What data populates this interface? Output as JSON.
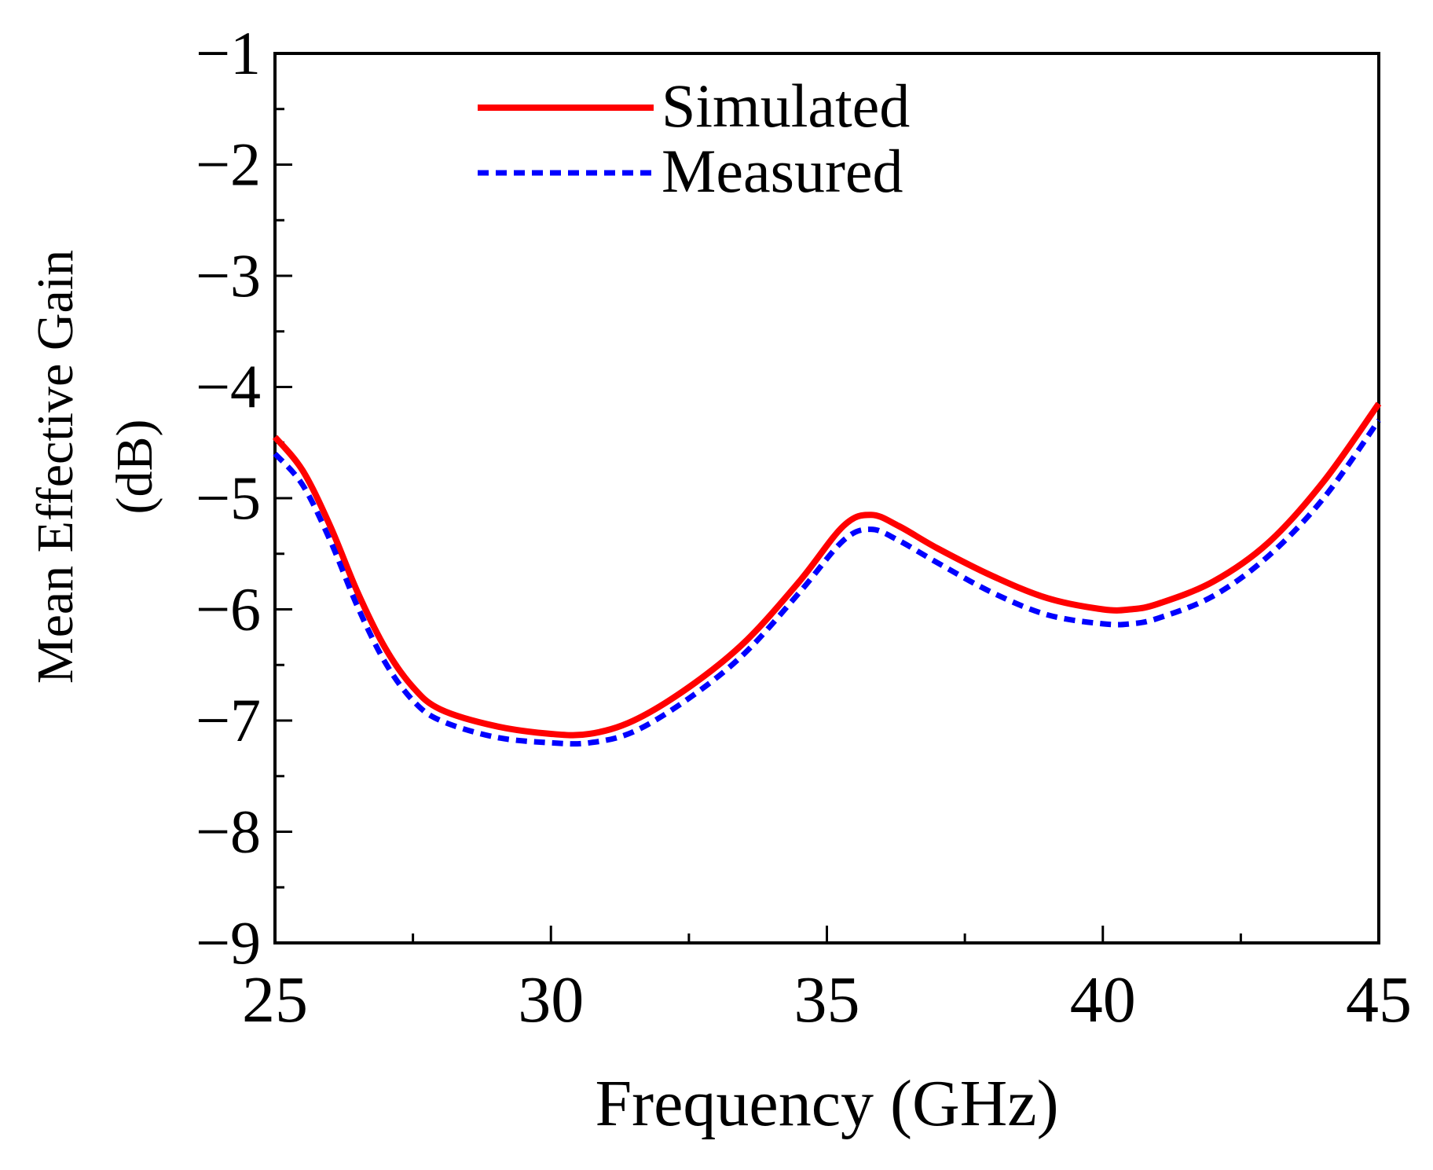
{
  "chart_data": {
    "type": "line",
    "title": "",
    "xlabel": "Frequency (GHz)",
    "ylabel_line1": "Mean Effective Gain",
    "ylabel_line2": "(dB)",
    "xlim": [
      25,
      45
    ],
    "ylim": [
      -9,
      -1
    ],
    "x_major_ticks": [
      25,
      30,
      35,
      40,
      45
    ],
    "x_tick_labels": [
      "25",
      "30",
      "35",
      "40",
      "45"
    ],
    "x_minor_ticks": [
      27.5,
      32.5,
      37.5,
      42.5
    ],
    "y_major_ticks": [
      -1,
      -2,
      -3,
      -4,
      -5,
      -6,
      -7,
      -8,
      -9
    ],
    "y_tick_labels": [
      "−1",
      "−2",
      "−3",
      "−4",
      "−5",
      "−6",
      "−7",
      "−8",
      "−9"
    ],
    "y_minor_ticks": [
      -1.5,
      -2.5,
      -3.5,
      -4.5,
      -5.5,
      -6.5,
      -7.5,
      -8.5
    ],
    "grid": false,
    "legend_position": "top-center",
    "series": [
      {
        "name": "Simulated",
        "color": "#ff0000",
        "style": "solid",
        "x": [
          25,
          25.5,
          26,
          26.5,
          27,
          27.5,
          28,
          29,
          30,
          30.7,
          31.5,
          32.5,
          33.5,
          34.5,
          35.3,
          35.8,
          36.3,
          37,
          38,
          39,
          40,
          40.5,
          41,
          42,
          43,
          44,
          45
        ],
        "y": [
          -4.45,
          -4.75,
          -5.25,
          -5.85,
          -6.35,
          -6.7,
          -6.9,
          -7.05,
          -7.12,
          -7.12,
          -7.0,
          -6.7,
          -6.3,
          -5.75,
          -5.25,
          -5.15,
          -5.25,
          -5.45,
          -5.7,
          -5.9,
          -6.0,
          -6.0,
          -5.95,
          -5.75,
          -5.4,
          -4.85,
          -4.15
        ]
      },
      {
        "name": "Measured",
        "color": "#0000ff",
        "style": "dashed",
        "x": [
          25,
          25.5,
          26,
          26.5,
          27,
          27.5,
          28,
          29,
          30,
          30.7,
          31.5,
          32.5,
          33.5,
          34.5,
          35.3,
          35.8,
          36.3,
          37,
          38,
          39,
          40,
          40.5,
          41,
          42,
          43,
          44,
          45
        ],
        "y": [
          -4.6,
          -4.88,
          -5.38,
          -5.98,
          -6.48,
          -6.82,
          -7.0,
          -7.15,
          -7.2,
          -7.2,
          -7.1,
          -6.8,
          -6.4,
          -5.85,
          -5.38,
          -5.28,
          -5.38,
          -5.58,
          -5.85,
          -6.05,
          -6.13,
          -6.13,
          -6.08,
          -5.88,
          -5.52,
          -5.0,
          -4.3
        ]
      }
    ]
  }
}
